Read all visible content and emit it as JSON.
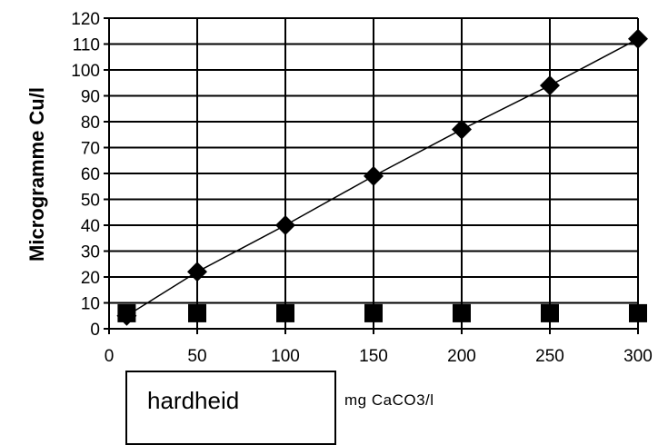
{
  "chart_data": {
    "type": "line",
    "title": "",
    "xlabel": "hardheid",
    "xunit": "mg CaCO3/l",
    "ylabel": "Microgramme Cu/l",
    "xlim": [
      0,
      300
    ],
    "ylim": [
      0,
      120
    ],
    "xticks": [
      0,
      50,
      100,
      150,
      200,
      250,
      300
    ],
    "yticks": [
      0,
      10,
      20,
      30,
      40,
      50,
      60,
      70,
      80,
      90,
      100,
      110,
      120
    ],
    "grid": true,
    "legend": "none",
    "series": [
      {
        "marker": "diamond",
        "line": true,
        "color": "#000000",
        "x": [
          10,
          50,
          100,
          150,
          200,
          250,
          300
        ],
        "y": [
          5,
          22,
          40,
          59,
          77,
          94,
          112
        ]
      },
      {
        "marker": "square",
        "line": false,
        "color": "#000000",
        "x": [
          10,
          50,
          100,
          150,
          200,
          250,
          300
        ],
        "y": [
          6,
          6,
          6,
          6,
          6,
          6,
          6
        ]
      }
    ]
  }
}
